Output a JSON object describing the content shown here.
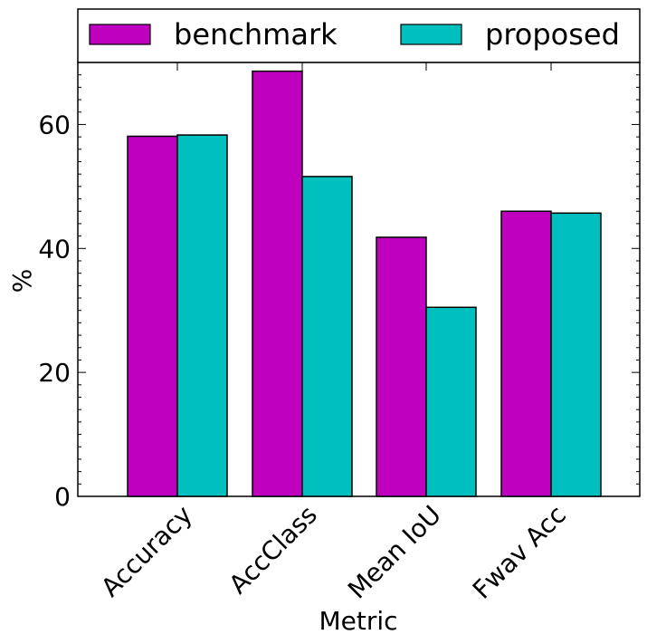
{
  "chart_data": {
    "type": "bar",
    "categories": [
      "Accuracy",
      "AccClass",
      "Mean IoU",
      "Fwav Acc"
    ],
    "series": [
      {
        "name": "benchmark",
        "color": "#bf00bf",
        "values": [
          58.1,
          68.6,
          41.8,
          46.0
        ]
      },
      {
        "name": "proposed",
        "color": "#00bfbf",
        "values": [
          58.3,
          51.6,
          30.5,
          45.7
        ]
      }
    ],
    "xlabel": "Metric",
    "ylabel": "%",
    "ylim": [
      0,
      70
    ],
    "yticks": [
      "0",
      "20",
      "40",
      "60"
    ],
    "legend_position": "top",
    "grid": false
  }
}
